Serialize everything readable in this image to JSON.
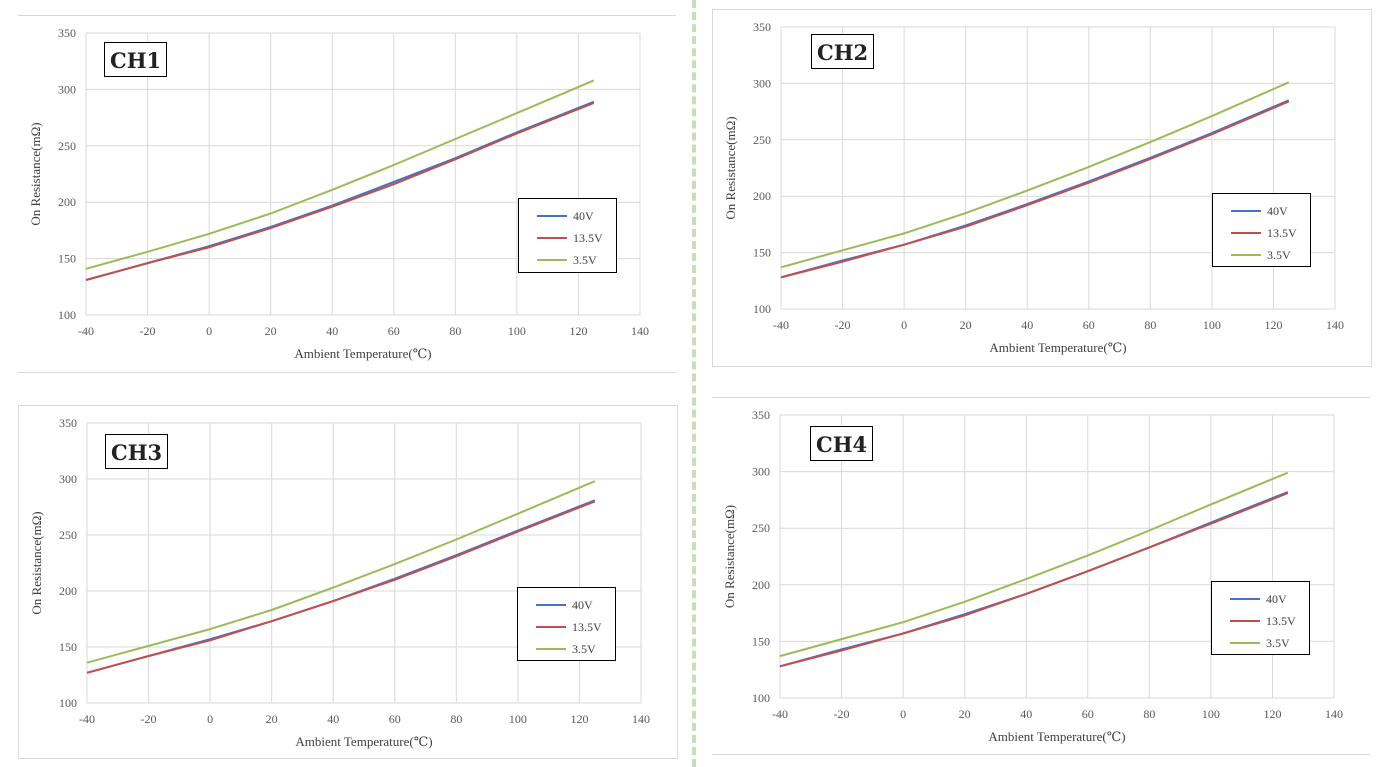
{
  "chart_data": [
    {
      "type": "line",
      "title": "CH1",
      "xlabel": "Ambient Temperature(℃)",
      "ylabel": "On Resistance(mΩ)",
      "xlim": [
        -40,
        140
      ],
      "ylim": [
        100,
        350
      ],
      "xticks": [
        "-40",
        "-20",
        "0",
        "20",
        "40",
        "60",
        "80",
        "100",
        "120",
        "140"
      ],
      "yticks": [
        "100",
        "150",
        "200",
        "250",
        "300",
        "350"
      ],
      "grid": true,
      "legend_position": "right",
      "x": [
        -40,
        -20,
        0,
        20,
        40,
        60,
        80,
        100,
        125
      ],
      "series": [
        {
          "name": "40V",
          "color": "#4472c4",
          "values": [
            131,
            146,
            161,
            178,
            197,
            218,
            239,
            262,
            289
          ]
        },
        {
          "name": "13.5V",
          "color": "#c0504d",
          "values": [
            131,
            146,
            160,
            177,
            196,
            216,
            238,
            261,
            288
          ]
        },
        {
          "name": "3.5V",
          "color": "#9bbb59",
          "values": [
            141,
            156,
            172,
            190,
            211,
            233,
            256,
            279,
            308
          ]
        }
      ]
    },
    {
      "type": "line",
      "title": "CH2",
      "xlabel": "Ambient Temperature(℃)",
      "ylabel": "On Resistance(mΩ)",
      "xlim": [
        -40,
        140
      ],
      "ylim": [
        100,
        350
      ],
      "xticks": [
        "-40",
        "-20",
        "0",
        "20",
        "40",
        "60",
        "80",
        "100",
        "120",
        "140"
      ],
      "yticks": [
        "100",
        "150",
        "200",
        "250",
        "300",
        "350"
      ],
      "grid": true,
      "legend_position": "right",
      "x": [
        -40,
        -20,
        0,
        20,
        40,
        60,
        80,
        100,
        125
      ],
      "series": [
        {
          "name": "40V",
          "color": "#4472c4",
          "values": [
            128,
            143,
            157,
            174,
            193,
            213,
            234,
            256,
            285
          ]
        },
        {
          "name": "13.5V",
          "color": "#c0504d",
          "values": [
            128,
            142,
            157,
            173,
            192,
            212,
            233,
            255,
            284
          ]
        },
        {
          "name": "3.5V",
          "color": "#9bbb59",
          "values": [
            137,
            152,
            167,
            185,
            205,
            226,
            248,
            271,
            301
          ]
        }
      ]
    },
    {
      "type": "line",
      "title": "CH3",
      "xlabel": "Ambient Temperature(℃)",
      "ylabel": "On Resistance(mΩ)",
      "xlim": [
        -40,
        140
      ],
      "ylim": [
        100,
        350
      ],
      "xticks": [
        "-40",
        "-20",
        "0",
        "20",
        "40",
        "60",
        "80",
        "100",
        "120",
        "140"
      ],
      "yticks": [
        "100",
        "150",
        "200",
        "250",
        "300",
        "350"
      ],
      "grid": true,
      "legend_position": "right",
      "x": [
        -40,
        -20,
        0,
        20,
        40,
        60,
        80,
        100,
        125
      ],
      "series": [
        {
          "name": "40V",
          "color": "#4472c4",
          "values": [
            127,
            142,
            157,
            173,
            191,
            211,
            232,
            254,
            281
          ]
        },
        {
          "name": "13.5V",
          "color": "#c0504d",
          "values": [
            127,
            142,
            156,
            173,
            191,
            210,
            231,
            253,
            280
          ]
        },
        {
          "name": "3.5V",
          "color": "#9bbb59",
          "values": [
            136,
            151,
            166,
            183,
            203,
            224,
            246,
            269,
            298
          ]
        }
      ]
    },
    {
      "type": "line",
      "title": "CH4",
      "xlabel": "Ambient Temperature(℃)",
      "ylabel": "On Resistance(mΩ)",
      "xlim": [
        -40,
        140
      ],
      "ylim": [
        100,
        350
      ],
      "xticks": [
        "-40",
        "-20",
        "0",
        "20",
        "40",
        "60",
        "80",
        "100",
        "120",
        "140"
      ],
      "yticks": [
        "100",
        "150",
        "200",
        "250",
        "300",
        "350"
      ],
      "grid": true,
      "legend_position": "right",
      "x": [
        -40,
        -20,
        0,
        20,
        40,
        60,
        80,
        100,
        125
      ],
      "series": [
        {
          "name": "40V",
          "color": "#4472c4",
          "values": [
            128,
            143,
            157,
            174,
            192,
            212,
            233,
            255,
            282
          ]
        },
        {
          "name": "13.5V",
          "color": "#c0504d",
          "values": [
            128,
            142,
            157,
            173,
            192,
            212,
            233,
            254,
            281
          ]
        },
        {
          "name": "3.5V",
          "color": "#9bbb59",
          "values": [
            137,
            152,
            167,
            185,
            205,
            226,
            248,
            271,
            299
          ]
        }
      ]
    }
  ]
}
